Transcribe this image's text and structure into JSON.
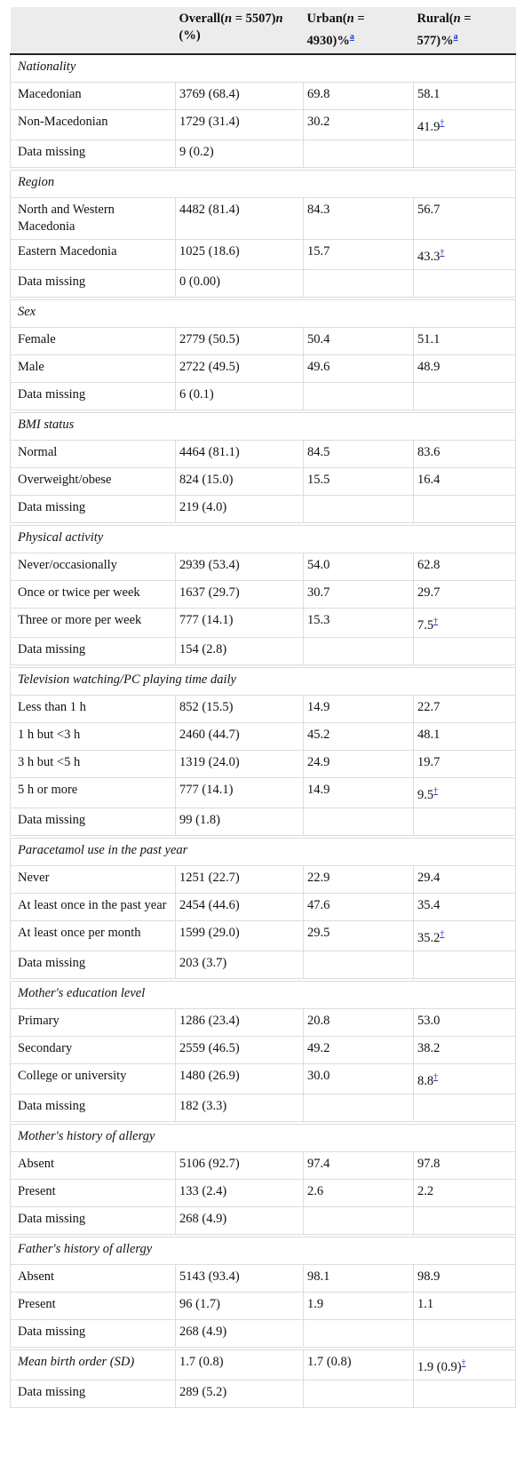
{
  "table": {
    "header": [
      {
        "parts": [
          "Overall(",
          "n",
          " = 5507)",
          "n",
          " (%)"
        ]
      },
      {
        "parts": [
          "Urban(",
          "n",
          " = 4930)%"
        ],
        "note": "a"
      },
      {
        "parts": [
          "Rural(",
          "n",
          " = 577)%"
        ],
        "note": "a"
      }
    ],
    "sections": [
      {
        "title": "Nationality",
        "rows": [
          {
            "cells": [
              "Macedonian",
              "3769 (68.4)",
              "69.8",
              "58.1"
            ]
          },
          {
            "cells": [
              "Non-Macedonian",
              "1729 (31.4)",
              "30.2",
              "41.9"
            ],
            "note": "†"
          },
          {
            "cells": [
              "Data missing",
              "9 (0.2)"
            ]
          }
        ]
      },
      {
        "title": "Region",
        "rows": [
          {
            "cells": [
              "North and Western Macedonia",
              "4482 (81.4)",
              "84.3",
              "56.7"
            ]
          },
          {
            "cells": [
              "Eastern Macedonia",
              "1025 (18.6)",
              "15.7",
              "43.3"
            ],
            "note": "†"
          },
          {
            "cells": [
              "Data missing",
              "0 (0.00)"
            ]
          }
        ]
      },
      {
        "title": "Sex",
        "rows": [
          {
            "cells": [
              "Female",
              "2779 (50.5)",
              "50.4",
              "51.1"
            ]
          },
          {
            "cells": [
              "Male",
              "2722 (49.5)",
              "49.6",
              "48.9"
            ]
          },
          {
            "cells": [
              "Data missing",
              "6 (0.1)"
            ]
          }
        ]
      },
      {
        "title": "BMI status",
        "rows": [
          {
            "cells": [
              "Normal",
              "4464 (81.1)",
              "84.5",
              "83.6"
            ]
          },
          {
            "cells": [
              "Overweight/obese",
              "824 (15.0)",
              "15.5",
              "16.4"
            ]
          },
          {
            "cells": [
              "Data missing",
              "219 (4.0)"
            ]
          }
        ]
      },
      {
        "title": "Physical activity",
        "rows": [
          {
            "cells": [
              "Never/occasionally",
              "2939 (53.4)",
              "54.0",
              "62.8"
            ]
          },
          {
            "cells": [
              "Once or twice per week",
              "1637 (29.7)",
              "30.7",
              "29.7"
            ]
          },
          {
            "cells": [
              "Three or more per week",
              "777 (14.1)",
              "15.3",
              "7.5"
            ],
            "note": "†"
          },
          {
            "cells": [
              "Data missing",
              "154 (2.8)"
            ]
          }
        ]
      },
      {
        "title": "Television watching/PC playing time daily",
        "rows": [
          {
            "cells": [
              "Less than 1 h",
              "852 (15.5)",
              "14.9",
              "22.7"
            ]
          },
          {
            "cells": [
              "1 h but <3 h",
              "2460 (44.7)",
              "45.2",
              "48.1"
            ]
          },
          {
            "cells": [
              "3 h but <5 h",
              "1319 (24.0)",
              "24.9",
              "19.7"
            ]
          },
          {
            "cells": [
              "5 h or more",
              "777 (14.1)",
              "14.9",
              "9.5"
            ],
            "note": "†"
          },
          {
            "cells": [
              "Data missing",
              "99 (1.8)"
            ]
          }
        ]
      },
      {
        "title": "Paracetamol use in the past year",
        "rows": [
          {
            "cells": [
              "Never",
              "1251 (22.7)",
              "22.9",
              "29.4"
            ]
          },
          {
            "cells": [
              "At least once in the past year",
              "2454 (44.6)",
              "47.6",
              "35.4"
            ]
          },
          {
            "cells": [
              "At least once per month",
              "1599 (29.0)",
              "29.5",
              "35.2"
            ],
            "note": "†"
          },
          {
            "cells": [
              "Data missing",
              "203 (3.7)"
            ]
          }
        ]
      },
      {
        "title": "Mother's education level",
        "rows": [
          {
            "cells": [
              "Primary",
              "1286 (23.4)",
              "20.8",
              "53.0"
            ]
          },
          {
            "cells": [
              "Secondary",
              "2559 (46.5)",
              "49.2",
              "38.2"
            ]
          },
          {
            "cells": [
              "College or university",
              "1480 (26.9)",
              "30.0",
              "8.8"
            ],
            "note": "†"
          },
          {
            "cells": [
              "Data missing",
              "182 (3.3)"
            ]
          }
        ]
      },
      {
        "title": "Mother's history of allergy",
        "rows": [
          {
            "cells": [
              "Absent",
              "5106 (92.7)",
              "97.4",
              "97.8"
            ]
          },
          {
            "cells": [
              "Present",
              "133 (2.4)",
              "2.6",
              "2.2"
            ]
          },
          {
            "cells": [
              "Data missing",
              "268 (4.9)"
            ]
          }
        ]
      },
      {
        "title": "Father's history of allergy",
        "rows": [
          {
            "cells": [
              "Absent",
              "5143 (93.4)",
              "98.1",
              "98.9"
            ]
          },
          {
            "cells": [
              "Present",
              "96 (1.7)",
              "1.9",
              "1.1"
            ]
          },
          {
            "cells": [
              "Data missing",
              "268 (4.9)"
            ]
          }
        ]
      },
      {
        "title": "Mean birth order (SD)",
        "cells": [
          "1.7 (0.8)",
          "1.7 (0.8)",
          "1.9 (0.9)"
        ],
        "note": "†",
        "rows": [
          {
            "cells": [
              "Data missing",
              "289 (5.2)"
            ]
          }
        ]
      }
    ]
  }
}
